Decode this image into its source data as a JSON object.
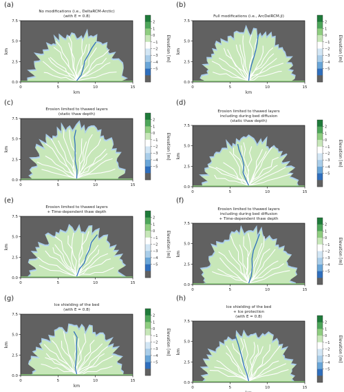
{
  "colorbar": {
    "label": "Elevation [m]",
    "ticks": [
      "2",
      "1",
      "0",
      "−1",
      "−2",
      "−3",
      "−4",
      "−5"
    ],
    "colors": [
      "#1f7a3a",
      "#4ea65a",
      "#8fcd80",
      "#c7e7b9",
      "#ffffff",
      "#d2e6f4",
      "#a9cde9",
      "#6aa6d8",
      "#2f6fbd",
      "#616161"
    ]
  },
  "chart_data": [
    {
      "type": "heatmap",
      "panel": "(a)",
      "title": "No modifications (i.e., DeltaRCM-Arctic)",
      "subtitle": "(with E = 0.8)",
      "xlabel": "km",
      "ylabel": "km",
      "xlim": [
        0,
        15
      ],
      "ylim": [
        0,
        7.5
      ],
      "xticks": [
        0,
        5,
        10,
        15
      ],
      "yticks": [
        0.0,
        2.5,
        5.0,
        7.5
      ],
      "clabel": "Elevation [m]",
      "clim": [
        -5,
        2
      ]
    },
    {
      "type": "heatmap",
      "panel": "(b)",
      "title": "Full modifications (i.e., ArcDelRCM.jl)",
      "subtitle": "",
      "xlabel": "km",
      "ylabel": "km",
      "xlim": [
        0,
        15
      ],
      "ylim": [
        0,
        7.5
      ],
      "xticks": [
        0,
        5,
        10,
        15
      ],
      "yticks": [
        0.0,
        2.5,
        5.0,
        7.5
      ],
      "clabel": "Elevation [m]",
      "clim": [
        -5,
        2
      ]
    },
    {
      "type": "heatmap",
      "panel": "(c)",
      "title": "Erosion limited to thawed layers",
      "subtitle": "(static thaw depth)",
      "xlabel": "",
      "ylabel": "km",
      "xlim": [
        0,
        15
      ],
      "ylim": [
        0,
        7.5
      ],
      "xticks": [
        0,
        5,
        10,
        15
      ],
      "yticks": [
        0.0,
        2.5,
        5.0,
        7.5
      ],
      "clabel": "Elevation [m]",
      "clim": [
        -5,
        2
      ]
    },
    {
      "type": "heatmap",
      "panel": "(d)",
      "title": "Erosion limited to thawed layers",
      "subtitle": "including during bed diffusion\n(static thaw depth)",
      "xlabel": "",
      "ylabel": "km",
      "xlim": [
        0,
        15
      ],
      "ylim": [
        0,
        7.5
      ],
      "xticks": [
        0,
        5,
        10,
        15
      ],
      "yticks": [
        0.0,
        2.5,
        5.0,
        7.5
      ],
      "clabel": "Elevation [m]",
      "clim": [
        -5,
        2
      ]
    },
    {
      "type": "heatmap",
      "panel": "(e)",
      "title": "Erosion limited to thawed layers",
      "subtitle": "+ Time-dependent thaw depth",
      "xlabel": "",
      "ylabel": "km",
      "xlim": [
        0,
        15
      ],
      "ylim": [
        0,
        7.5
      ],
      "xticks": [
        0,
        5,
        10,
        15
      ],
      "yticks": [
        0.0,
        2.5,
        5.0,
        7.5
      ],
      "clabel": "Elevation [m]",
      "clim": [
        -5,
        2
      ]
    },
    {
      "type": "heatmap",
      "panel": "(f)",
      "title": "Erosion limited to thawed layers",
      "subtitle": "including during bed diffusion\n+ Time-dependent thaw depth",
      "xlabel": "",
      "ylabel": "km",
      "xlim": [
        0,
        15
      ],
      "ylim": [
        0,
        7.5
      ],
      "xticks": [
        0,
        5,
        10,
        15
      ],
      "yticks": [
        0.0,
        2.5,
        5.0,
        7.5
      ],
      "clabel": "Elevation [m]",
      "clim": [
        -5,
        2
      ]
    },
    {
      "type": "heatmap",
      "panel": "(g)",
      "title": "Ice shielding of the bed",
      "subtitle": "(with E = 0.8)",
      "xlabel": "km",
      "ylabel": "km",
      "xlim": [
        0,
        15
      ],
      "ylim": [
        0,
        7.5
      ],
      "xticks": [
        0,
        5,
        10,
        15
      ],
      "yticks": [
        0.0,
        2.5,
        5.0,
        7.5
      ],
      "clabel": "Elevation [m]",
      "clim": [
        -5,
        2
      ]
    },
    {
      "type": "heatmap",
      "panel": "(h)",
      "title": "Ice shielding of the bed",
      "subtitle": "+ Ice protection\n(with E = 0.8)",
      "xlabel": "km",
      "ylabel": "km",
      "xlim": [
        0,
        15
      ],
      "ylim": [
        0,
        7.5
      ],
      "xticks": [
        0,
        5,
        10,
        15
      ],
      "yticks": [
        0.0,
        2.5,
        5.0,
        7.5
      ],
      "clabel": "Elevation [m]",
      "clim": [
        -5,
        2
      ]
    }
  ]
}
